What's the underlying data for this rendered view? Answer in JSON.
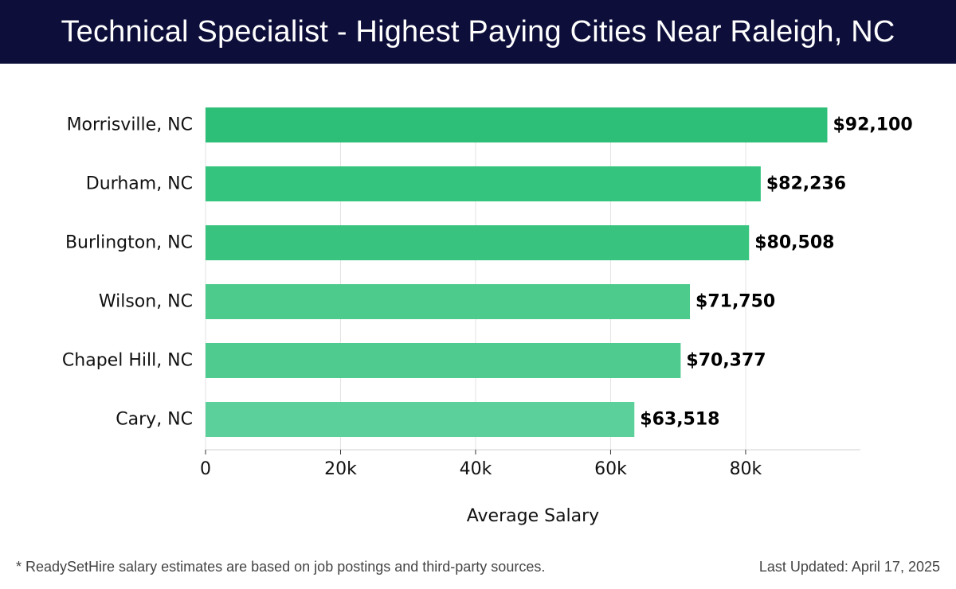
{
  "header": {
    "title": "Technical Specialist - Highest Paying Cities Near Raleigh, NC"
  },
  "chart_data": {
    "type": "bar",
    "orientation": "horizontal",
    "categories": [
      "Morrisville, NC",
      "Durham, NC",
      "Burlington, NC",
      "Wilson, NC",
      "Chapel Hill, NC",
      "Cary, NC"
    ],
    "values": [
      92100,
      82236,
      80508,
      71750,
      70377,
      63518
    ],
    "value_labels": [
      "$92,100",
      "$82,236",
      "$80,508",
      "$71,750",
      "$70,377",
      "$63,518"
    ],
    "colors": [
      "#2dbf78",
      "#35c47e",
      "#38c47f",
      "#4ccb8d",
      "#4fcb8f",
      "#5bd09a"
    ],
    "xlabel": "Average Salary",
    "xlim": [
      0,
      97000
    ],
    "xticks": [
      0,
      20000,
      40000,
      60000,
      80000
    ],
    "xtick_labels": [
      "0",
      "20k",
      "40k",
      "60k",
      "80k"
    ],
    "grid": true
  },
  "footer": {
    "note": "* ReadySetHire salary estimates are based on job postings and third-party sources.",
    "updated": "Last Updated: April 17, 2025"
  }
}
